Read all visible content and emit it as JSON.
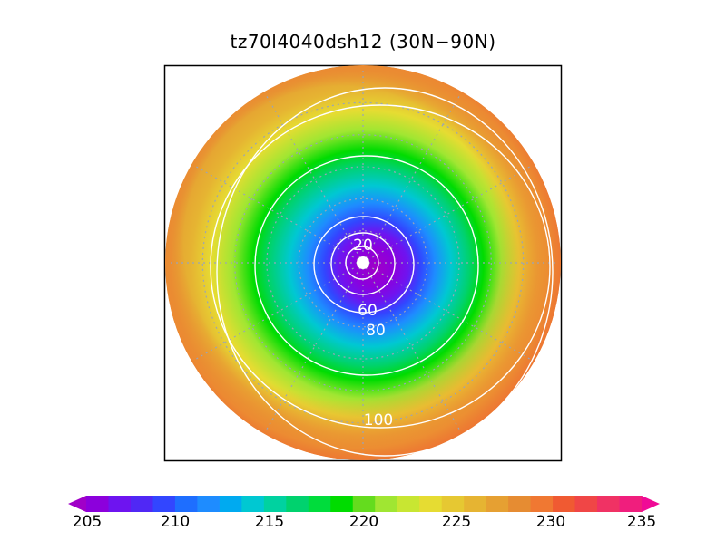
{
  "title": "tz70l4040dsh12 (30N−90N)",
  "map": {
    "projection": "north-polar-stereographic",
    "lat_range_deg": [
      30,
      90
    ],
    "fill_variable_range": [
      205,
      235
    ],
    "fill_pattern": "cold core (~205) centred on the pole, warming outward, warmest (~233) on the upper-left edge near 30N",
    "overlay_contours": {
      "color": "#ffffff",
      "levels": [
        20,
        40,
        60,
        80,
        100,
        120
      ],
      "labels_shown": [
        "20",
        "60",
        "80",
        "100"
      ]
    },
    "graticule": {
      "style": "dotted",
      "color": "#9aa4b8",
      "parallels_deg": [
        40,
        50,
        60,
        70,
        80
      ],
      "meridian_step_deg": 30
    }
  },
  "colorbar": {
    "ticks": [
      "205",
      "210",
      "215",
      "220",
      "225",
      "230",
      "235"
    ],
    "tick_values": [
      205,
      210,
      215,
      220,
      225,
      230,
      235
    ],
    "colors": [
      "#a000c8",
      "#8c00dc",
      "#6e14f0",
      "#5028f5",
      "#3246ff",
      "#1e6eff",
      "#1e8cff",
      "#00aaf0",
      "#00c8d2",
      "#00d2a0",
      "#00d26e",
      "#00dc3c",
      "#00dc00",
      "#64dc1e",
      "#a0e632",
      "#c8e632",
      "#e6dc32",
      "#e6c832",
      "#e6b432",
      "#e6a032",
      "#e68c32",
      "#f07832",
      "#f05a32",
      "#f04646",
      "#f03264",
      "#f01e7d",
      "#f00a96"
    ]
  }
}
